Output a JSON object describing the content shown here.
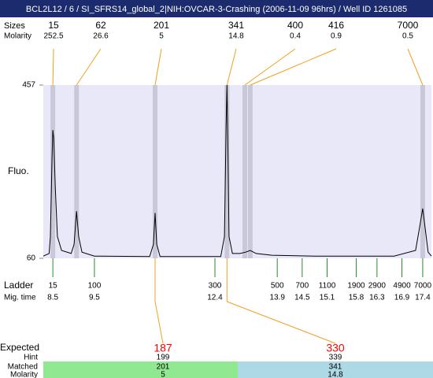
{
  "title": "BCL2L12 / 6 / SI_SFRS14_global_2|NIH:OVCAR-3-Crashing (2006-11-09 96hrs) / Well ID 1261085",
  "chart_data": {
    "type": "electropherogram",
    "y_label": "Fluo.",
    "xlim": [
      8.27,
      17.61
    ],
    "ylim": [
      60,
      457
    ],
    "yticks": [
      60,
      457
    ],
    "row_labels": {
      "sizes": "Sizes",
      "molarity": "Molarity",
      "ladder": "Ladder",
      "mig_time": "Mig. time",
      "expected": "Expected",
      "hint": "Hint",
      "matched": "Matched",
      "matched_molarity": "Molarity"
    },
    "peaks": [
      {
        "size": 15,
        "molarity": 252.5,
        "time": 8.5
      },
      {
        "size": 62,
        "molarity": 26.6,
        "time": 9.07
      },
      {
        "size": 201,
        "molarity": 5,
        "time": 10.96
      },
      {
        "size": 341,
        "molarity": 14.8,
        "time": 12.69
      },
      {
        "size": 400,
        "molarity": 0.4,
        "time": 13.12
      },
      {
        "size": 416,
        "molarity": 0.9,
        "time": 13.25
      },
      {
        "size": 7000,
        "molarity": 0.5,
        "time": 17.4
      }
    ],
    "ladder": [
      {
        "size": 15,
        "time": 8.5
      },
      {
        "size": 100,
        "time": 9.5
      },
      {
        "size": 300,
        "time": 12.4
      },
      {
        "size": 500,
        "time": 13.9
      },
      {
        "size": 700,
        "time": 14.5
      },
      {
        "size": 1100,
        "time": 15.1
      },
      {
        "size": 1900,
        "time": 15.8
      },
      {
        "size": 2900,
        "time": 16.3
      },
      {
        "size": 4900,
        "time": 16.9
      },
      {
        "size": 7000,
        "time": 17.4
      }
    ],
    "expected": [
      {
        "expected": 187,
        "hint": 199,
        "matched": 201,
        "molarity": 5,
        "color": "#90e890"
      },
      {
        "expected": 330,
        "hint": 339,
        "matched": 341,
        "molarity": 14.8,
        "color": "#add8e6"
      }
    ],
    "trace": {
      "color": "#000000",
      "x": [
        8.27,
        8.41,
        8.44,
        8.48,
        8.5,
        8.52,
        8.56,
        8.61,
        8.71,
        8.94,
        9.01,
        9.07,
        9.12,
        9.2,
        9.5,
        10.83,
        10.92,
        10.96,
        11.0,
        11.08,
        12.54,
        12.63,
        12.67,
        12.69,
        12.71,
        12.74,
        12.82,
        13.0,
        13.14,
        13.25,
        13.39,
        13.77,
        14.81,
        16.71,
        17.23,
        17.32,
        17.4,
        17.46,
        17.53,
        17.61
      ],
      "y": [
        65,
        71,
        110,
        290,
        354,
        336,
        219,
        110,
        78,
        71,
        92,
        168,
        110,
        74,
        65,
        64,
        92,
        164,
        92,
        64,
        64,
        110,
        363,
        457,
        327,
        110,
        71,
        71,
        74,
        78,
        71,
        67,
        65,
        65,
        78,
        128,
        174,
        128,
        74,
        65
      ]
    },
    "plot_color": "#e8e8f8",
    "band_color": "#c8c8d8",
    "link_color": "#f0a020",
    "ladder_color": "#2a8a2a",
    "expected_color": "#ff0000"
  }
}
